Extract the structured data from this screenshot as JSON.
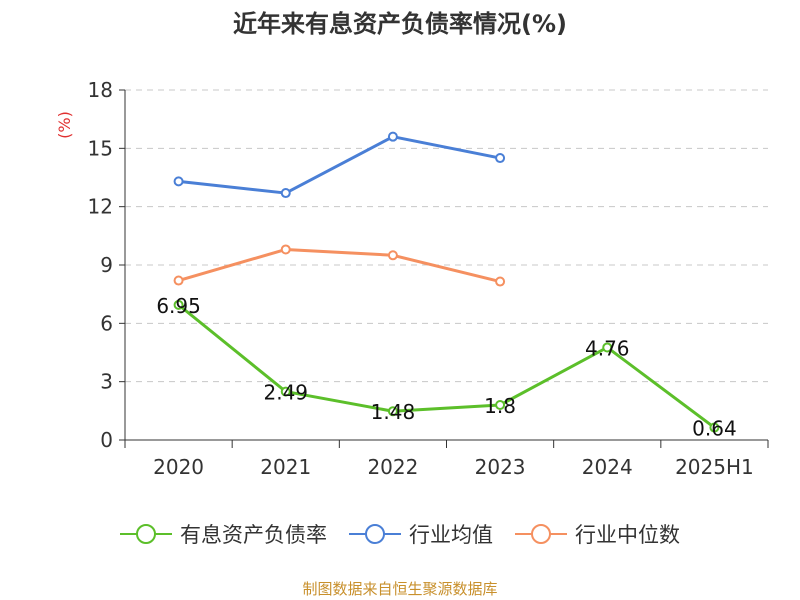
{
  "chart_data": {
    "type": "line",
    "title": "近年来有息资产负债率情况(%)",
    "ylabel": "(%)",
    "xlabel": "",
    "categories": [
      "2020",
      "2021",
      "2022",
      "2023",
      "2024",
      "2025H1"
    ],
    "ylim": [
      0,
      18
    ],
    "yticks": [
      0,
      3,
      6,
      9,
      12,
      15,
      18
    ],
    "grid": true,
    "legend_position": "bottom",
    "series": [
      {
        "name": "有息资产负债率",
        "color": "#5cbf2a",
        "values": [
          6.95,
          2.49,
          1.48,
          1.8,
          4.76,
          0.64
        ],
        "labels": [
          "6.95",
          "2.49",
          "1.48",
          "1.8",
          "4.76",
          "0.64"
        ]
      },
      {
        "name": "行业均值",
        "color": "#4a7fd6",
        "values": [
          13.3,
          12.7,
          15.6,
          14.5,
          null,
          null
        ]
      },
      {
        "name": "行业中位数",
        "color": "#f59060",
        "values": [
          8.2,
          9.8,
          9.5,
          8.15,
          null,
          null
        ]
      }
    ]
  },
  "source_note": "制图数据来自恒生聚源数据库",
  "colors": {
    "ylabel": "#e03030",
    "grid": "#c8c8c8",
    "axis": "#333333",
    "source": "#c8902c"
  }
}
